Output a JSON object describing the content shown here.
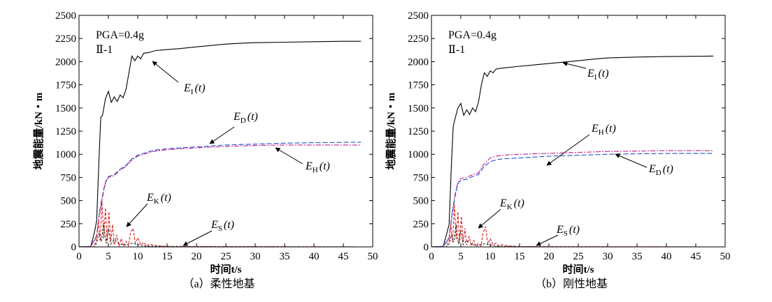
{
  "chart_data": [
    {
      "type": "line",
      "caption": "（a）柔性地基",
      "annotation": [
        "PGA=0.4g",
        "Ⅱ-1"
      ],
      "xlabel": "时间t/s",
      "ylabel": "地震能量/kN・m",
      "xlim": [
        0,
        50
      ],
      "ylim": [
        0,
        2500
      ],
      "xticks": [
        "0",
        "5",
        "10",
        "15",
        "20",
        "25",
        "30",
        "35",
        "40",
        "45",
        "50"
      ],
      "yticks": [
        "0",
        "250",
        "500",
        "750",
        "1000",
        "1250",
        "1500",
        "1750",
        "2000",
        "2250",
        "2500"
      ],
      "grid": false,
      "series": [
        {
          "name": "EI(t)",
          "label_main": "E",
          "label_sub": "I",
          "label_arg": "(t)",
          "color": "#000000",
          "dash": "",
          "x": [
            0,
            2,
            2.6,
            3.0,
            3.4,
            3.7,
            4.0,
            4.5,
            5.0,
            5.5,
            6.0,
            6.5,
            7.0,
            7.5,
            8.0,
            8.5,
            9.0,
            9.5,
            10.0,
            10.5,
            11.0,
            12.0,
            13,
            15,
            17,
            20,
            25,
            28,
            30,
            35,
            40,
            45,
            48
          ],
          "y": [
            0,
            5,
            150,
            280,
            950,
            1400,
            1420,
            1600,
            1680,
            1560,
            1620,
            1570,
            1640,
            1610,
            1700,
            1880,
            2060,
            2010,
            2060,
            2030,
            2090,
            2100,
            2120,
            2130,
            2140,
            2160,
            2190,
            2200,
            2205,
            2210,
            2215,
            2220,
            2220
          ]
        },
        {
          "name": "ED(t)",
          "label_main": "E",
          "label_sub": "D",
          "label_arg": "(t)",
          "color": "#1f4fd1",
          "dash": "7 3",
          "x": [
            0,
            2,
            3.0,
            3.5,
            4.0,
            4.5,
            5.0,
            6.0,
            7.0,
            8.0,
            9.0,
            10.0,
            11.0,
            12.0,
            13,
            15,
            20,
            25,
            30,
            35,
            40,
            45,
            48
          ],
          "y": [
            0,
            5,
            120,
            380,
            560,
            700,
            760,
            780,
            840,
            880,
            950,
            990,
            1010,
            1030,
            1045,
            1060,
            1080,
            1100,
            1110,
            1120,
            1125,
            1128,
            1130
          ]
        },
        {
          "name": "EH(t)",
          "label_main": "E",
          "label_sub": "H",
          "label_arg": "(t)",
          "color": "#c0208a",
          "dash": "7 2 2 2",
          "x": [
            0,
            2,
            3.0,
            3.5,
            4.0,
            4.5,
            5.0,
            6.0,
            7.0,
            8.0,
            9.0,
            10.0,
            11.0,
            12.0,
            13,
            15,
            20,
            25,
            30,
            35,
            40,
            45,
            48
          ],
          "y": [
            0,
            5,
            110,
            360,
            540,
            690,
            750,
            770,
            830,
            870,
            940,
            980,
            1000,
            1020,
            1035,
            1050,
            1070,
            1085,
            1095,
            1100,
            1100,
            1100,
            1100
          ]
        },
        {
          "name": "EK(t)",
          "label_main": "E",
          "label_sub": "K",
          "label_arg": "(t)",
          "color": "#e02020",
          "dash": "4 2",
          "x": [
            0,
            2.5,
            3.0,
            3.3,
            3.6,
            3.9,
            4.2,
            4.5,
            4.8,
            5.1,
            5.4,
            5.7,
            6.0,
            6.4,
            6.8,
            7.2,
            7.6,
            8.0,
            8.4,
            8.8,
            9.2,
            9.6,
            10.0,
            10.5,
            11.0,
            11.5,
            12,
            13,
            14,
            15,
            48
          ],
          "y": [
            0,
            0,
            80,
            280,
            60,
            500,
            90,
            420,
            40,
            380,
            60,
            240,
            20,
            130,
            10,
            90,
            5,
            60,
            10,
            160,
            200,
            40,
            100,
            20,
            50,
            10,
            30,
            15,
            10,
            5,
            0
          ]
        },
        {
          "name": "ES(t)",
          "label_main": "E",
          "label_sub": "S",
          "label_arg": "(t)",
          "color": "#333333",
          "dash": "3 2",
          "x": [
            0,
            2.5,
            3.0,
            3.4,
            3.8,
            4.2,
            4.6,
            5.0,
            5.4,
            6.0,
            7.0,
            8.0,
            9.0,
            10.0,
            11,
            12,
            15,
            20,
            48
          ],
          "y": [
            0,
            0,
            40,
            150,
            60,
            260,
            40,
            200,
            30,
            80,
            30,
            20,
            40,
            25,
            10,
            8,
            4,
            2,
            0
          ]
        }
      ]
    },
    {
      "type": "line",
      "caption": "（b）刚性地基",
      "annotation": [
        "PGA=0.4g",
        "Ⅱ-1"
      ],
      "xlabel": "时间t/s",
      "ylabel": "地震能量/kN・m",
      "xlim": [
        0,
        50
      ],
      "ylim": [
        0,
        2500
      ],
      "xticks": [
        "0",
        "5",
        "10",
        "15",
        "20",
        "25",
        "30",
        "35",
        "40",
        "45",
        "50"
      ],
      "yticks": [
        "0",
        "250",
        "500",
        "750",
        "1000",
        "1250",
        "1500",
        "1750",
        "2000",
        "2250",
        "2500"
      ],
      "grid": false,
      "series": [
        {
          "name": "EI(t)",
          "label_main": "E",
          "label_sub": "I",
          "label_arg": "(t)",
          "color": "#000000",
          "dash": "",
          "x": [
            0,
            2,
            2.5,
            3.0,
            3.4,
            3.7,
            4.0,
            4.5,
            5.0,
            5.5,
            6.0,
            6.5,
            7.0,
            7.5,
            8.0,
            8.5,
            9.0,
            9.5,
            10.0,
            10.5,
            11.0,
            12.0,
            15,
            20,
            25,
            28,
            30,
            35,
            40,
            45,
            48
          ],
          "y": [
            0,
            5,
            120,
            240,
            900,
            1300,
            1380,
            1500,
            1550,
            1420,
            1480,
            1430,
            1500,
            1460,
            1560,
            1750,
            1880,
            1840,
            1900,
            1880,
            1920,
            1930,
            1950,
            1980,
            2010,
            2030,
            2040,
            2050,
            2055,
            2058,
            2060
          ]
        },
        {
          "name": "EH(t)",
          "label_main": "E",
          "label_sub": "H",
          "label_arg": "(t)",
          "color": "#c0208a",
          "dash": "7 2 2 2",
          "x": [
            0,
            2,
            3.0,
            3.5,
            4.0,
            4.5,
            5.0,
            6.0,
            7.0,
            8.0,
            9.0,
            10.0,
            11.0,
            12.0,
            15,
            20,
            25,
            30,
            35,
            40,
            45,
            48
          ],
          "y": [
            0,
            5,
            100,
            360,
            560,
            700,
            740,
            750,
            780,
            800,
            900,
            960,
            980,
            990,
            1000,
            1010,
            1020,
            1030,
            1035,
            1040,
            1040,
            1040
          ]
        },
        {
          "name": "ED(t)",
          "label_main": "E",
          "label_sub": "D",
          "label_arg": "(t)",
          "color": "#1f4fd1",
          "dash": "7 3",
          "x": [
            0,
            2,
            3.0,
            3.5,
            4.0,
            4.5,
            5.0,
            6.0,
            7.0,
            8.0,
            9.0,
            10.0,
            11.0,
            12.0,
            15,
            20,
            25,
            30,
            35,
            40,
            45,
            48
          ],
          "y": [
            0,
            5,
            90,
            340,
            540,
            680,
            720,
            730,
            760,
            780,
            870,
            920,
            940,
            950,
            960,
            980,
            990,
            1000,
            1005,
            1008,
            1010,
            1010
          ]
        },
        {
          "name": "EK(t)",
          "label_main": "E",
          "label_sub": "K",
          "label_arg": "(t)",
          "color": "#e02020",
          "dash": "4 2",
          "x": [
            0,
            2.5,
            3.0,
            3.3,
            3.6,
            3.9,
            4.2,
            4.5,
            4.8,
            5.1,
            5.4,
            5.7,
            6.0,
            6.4,
            6.8,
            7.2,
            7.6,
            8.0,
            8.4,
            8.8,
            9.2,
            9.6,
            10.0,
            10.5,
            11.0,
            11.5,
            12,
            13,
            14,
            15,
            48
          ],
          "y": [
            0,
            0,
            70,
            250,
            50,
            460,
            80,
            380,
            40,
            330,
            50,
            200,
            20,
            110,
            10,
            70,
            5,
            40,
            10,
            150,
            220,
            30,
            90,
            20,
            40,
            10,
            25,
            10,
            8,
            4,
            0
          ]
        },
        {
          "name": "ES(t)",
          "label_main": "E",
          "label_sub": "S",
          "label_arg": "(t)",
          "color": "#333333",
          "dash": "3 2",
          "x": [
            0,
            2.5,
            3.0,
            3.4,
            3.8,
            4.2,
            4.6,
            5.0,
            5.4,
            6.0,
            7.0,
            8.0,
            9.0,
            10.0,
            11,
            12,
            15,
            20,
            48
          ],
          "y": [
            0,
            0,
            30,
            130,
            50,
            240,
            30,
            180,
            25,
            70,
            25,
            15,
            35,
            20,
            8,
            6,
            3,
            1,
            0
          ]
        }
      ]
    }
  ]
}
